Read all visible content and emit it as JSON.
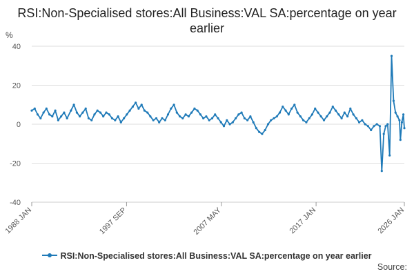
{
  "chart_data": {
    "type": "line",
    "title": "RSI:Non-Specialised stores:All Business:VAL SA:percentage on year earlier",
    "ylabel": "%",
    "xlabel": "",
    "ylim": [
      -40,
      40
    ],
    "yticks": [
      40,
      20,
      0,
      -20,
      -40
    ],
    "xticks": [
      {
        "label": "1988 JAN",
        "x": 1988.0
      },
      {
        "label": "1997 SEP",
        "x": 1997.67
      },
      {
        "label": "2007 MAY",
        "x": 2007.33
      },
      {
        "label": "2017 JAN",
        "x": 2017.0
      },
      {
        "label": "2026 JAN",
        "x": 2026.0
      }
    ],
    "xlim": [
      1988.0,
      2026.0
    ],
    "grid": true,
    "legend_position": "bottom",
    "series": [
      {
        "name": "RSI:Non-Specialised stores:All Business:VAL SA:percentage on year earlier",
        "color": "#1f7ab8",
        "points": [
          [
            1988.0,
            7
          ],
          [
            1988.3,
            8
          ],
          [
            1988.6,
            5
          ],
          [
            1988.9,
            3
          ],
          [
            1989.2,
            6
          ],
          [
            1989.5,
            8
          ],
          [
            1989.8,
            5
          ],
          [
            1990.1,
            4
          ],
          [
            1990.4,
            7
          ],
          [
            1990.7,
            2
          ],
          [
            1991.0,
            4
          ],
          [
            1991.3,
            6
          ],
          [
            1991.6,
            3
          ],
          [
            1992.0,
            7
          ],
          [
            1992.3,
            10
          ],
          [
            1992.6,
            6
          ],
          [
            1992.9,
            4
          ],
          [
            1993.2,
            6
          ],
          [
            1993.5,
            8
          ],
          [
            1993.8,
            3
          ],
          [
            1994.1,
            2
          ],
          [
            1994.4,
            5
          ],
          [
            1994.7,
            7
          ],
          [
            1995.0,
            6
          ],
          [
            1995.3,
            4
          ],
          [
            1995.6,
            6
          ],
          [
            1995.9,
            5
          ],
          [
            1996.2,
            3
          ],
          [
            1996.5,
            2
          ],
          [
            1996.8,
            4
          ],
          [
            1997.1,
            1
          ],
          [
            1997.4,
            3
          ],
          [
            1997.7,
            5
          ],
          [
            1998.0,
            7
          ],
          [
            1998.3,
            9
          ],
          [
            1998.6,
            11
          ],
          [
            1998.9,
            8
          ],
          [
            1999.2,
            10
          ],
          [
            1999.5,
            7
          ],
          [
            1999.8,
            6
          ],
          [
            2000.1,
            4
          ],
          [
            2000.4,
            2
          ],
          [
            2000.7,
            3
          ],
          [
            2001.0,
            1
          ],
          [
            2001.3,
            3
          ],
          [
            2001.6,
            2
          ],
          [
            2001.9,
            5
          ],
          [
            2002.2,
            8
          ],
          [
            2002.5,
            10
          ],
          [
            2002.8,
            6
          ],
          [
            2003.1,
            4
          ],
          [
            2003.4,
            3
          ],
          [
            2003.7,
            5
          ],
          [
            2004.0,
            4
          ],
          [
            2004.3,
            6
          ],
          [
            2004.6,
            8
          ],
          [
            2004.9,
            7
          ],
          [
            2005.2,
            5
          ],
          [
            2005.5,
            3
          ],
          [
            2005.8,
            4
          ],
          [
            2006.1,
            2
          ],
          [
            2006.4,
            3
          ],
          [
            2006.7,
            5
          ],
          [
            2007.0,
            3
          ],
          [
            2007.3,
            1
          ],
          [
            2007.6,
            -1
          ],
          [
            2007.9,
            2
          ],
          [
            2008.2,
            0
          ],
          [
            2008.5,
            1
          ],
          [
            2008.8,
            3
          ],
          [
            2009.1,
            5
          ],
          [
            2009.4,
            6
          ],
          [
            2009.7,
            3
          ],
          [
            2010.0,
            2
          ],
          [
            2010.3,
            4
          ],
          [
            2010.6,
            1
          ],
          [
            2010.9,
            -2
          ],
          [
            2011.2,
            -4
          ],
          [
            2011.5,
            -5
          ],
          [
            2011.8,
            -3
          ],
          [
            2012.1,
            0
          ],
          [
            2012.4,
            2
          ],
          [
            2012.7,
            3
          ],
          [
            2013.0,
            4
          ],
          [
            2013.3,
            6
          ],
          [
            2013.6,
            9
          ],
          [
            2013.9,
            7
          ],
          [
            2014.2,
            5
          ],
          [
            2014.5,
            8
          ],
          [
            2014.8,
            10
          ],
          [
            2015.1,
            6
          ],
          [
            2015.4,
            4
          ],
          [
            2015.7,
            2
          ],
          [
            2016.0,
            1
          ],
          [
            2016.3,
            3
          ],
          [
            2016.6,
            5
          ],
          [
            2016.9,
            8
          ],
          [
            2017.2,
            6
          ],
          [
            2017.5,
            4
          ],
          [
            2017.8,
            2
          ],
          [
            2018.1,
            4
          ],
          [
            2018.4,
            6
          ],
          [
            2018.7,
            9
          ],
          [
            2019.0,
            7
          ],
          [
            2019.3,
            5
          ],
          [
            2019.6,
            3
          ],
          [
            2019.9,
            6
          ],
          [
            2020.2,
            4
          ],
          [
            2020.5,
            8
          ],
          [
            2020.8,
            5
          ],
          [
            2021.1,
            3
          ],
          [
            2021.4,
            1
          ],
          [
            2021.7,
            2
          ],
          [
            2022.0,
            0
          ],
          [
            2022.3,
            -1
          ],
          [
            2022.6,
            -3
          ],
          [
            2022.9,
            -1
          ],
          [
            2023.2,
            0
          ],
          [
            2023.5,
            -1
          ],
          [
            2023.7,
            -24
          ],
          [
            2023.9,
            -5
          ],
          [
            2024.1,
            -1
          ],
          [
            2024.3,
            0
          ],
          [
            2024.5,
            -16
          ],
          [
            2024.7,
            35
          ],
          [
            2024.9,
            12
          ],
          [
            2025.1,
            6
          ],
          [
            2025.3,
            4
          ],
          [
            2025.5,
            2
          ],
          [
            2025.6,
            -8
          ],
          [
            2025.75,
            1
          ],
          [
            2025.9,
            5
          ],
          [
            2026.0,
            -2
          ]
        ]
      }
    ],
    "source_label": "Source:"
  }
}
